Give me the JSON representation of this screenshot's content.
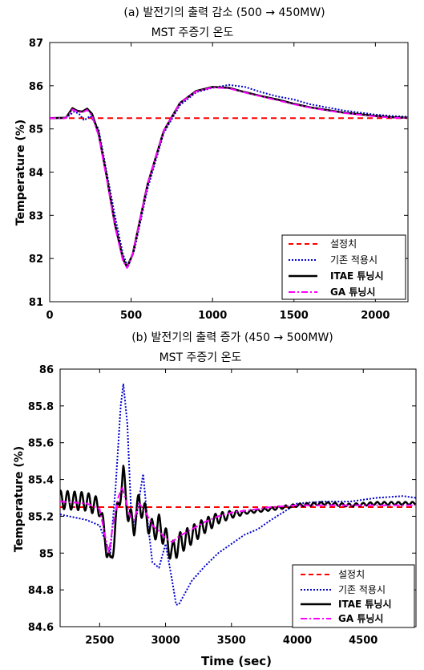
{
  "colors": {
    "setpoint": "#ff0000",
    "baseline": "#0000cc",
    "itae": "#000000",
    "ga": "#ff00ff"
  },
  "chart_data": [
    {
      "type": "line",
      "title": "(a) 발전기의 출력 감소 (500 → 450MW)",
      "subtitle": "MST 주증기 온도",
      "xlabel": "",
      "ylabel": "Temperature (%)",
      "xlim": [
        0,
        2200
      ],
      "ylim": [
        81,
        87
      ],
      "xticks": [
        0,
        500,
        1000,
        1500,
        2000
      ],
      "yticks": [
        81,
        82,
        83,
        84,
        85,
        86,
        87
      ],
      "xtick_labels": [
        "0",
        "500",
        "1000",
        "1500",
        "2000"
      ],
      "ytick_labels": [
        "81",
        "82",
        "83",
        "84",
        "85",
        "86",
        "87"
      ],
      "grid": false,
      "legend_position": "bottom-right",
      "series": [
        {
          "name": "설정치",
          "style": "dashed",
          "x": [
            0,
            2200
          ],
          "y": [
            85.25,
            85.25
          ]
        },
        {
          "name": "기존 적용시",
          "style": "dotted",
          "x": [
            0,
            100,
            150,
            180,
            210,
            250,
            300,
            350,
            400,
            450,
            480,
            520,
            600,
            700,
            800,
            900,
            1000,
            1100,
            1200,
            1300,
            1400,
            1500,
            1600,
            1700,
            1800,
            1900,
            2000,
            2100,
            2200
          ],
          "y": [
            85.25,
            85.25,
            85.4,
            85.35,
            85.2,
            85.3,
            85.0,
            84.0,
            83.0,
            82.1,
            81.8,
            82.2,
            83.6,
            84.9,
            85.55,
            85.85,
            85.95,
            86.02,
            85.97,
            85.85,
            85.75,
            85.68,
            85.57,
            85.5,
            85.43,
            85.38,
            85.33,
            85.3,
            85.28
          ]
        },
        {
          "name": "ITAE 튜닝시",
          "style": "solid",
          "x": [
            0,
            100,
            140,
            170,
            200,
            230,
            260,
            300,
            350,
            400,
            450,
            475,
            510,
            600,
            700,
            800,
            900,
            1000,
            1100,
            1200,
            1300,
            1400,
            1500,
            1600,
            1700,
            1800,
            1900,
            2000,
            2100,
            2200
          ],
          "y": [
            85.25,
            85.26,
            85.48,
            85.42,
            85.4,
            85.47,
            85.35,
            84.9,
            83.9,
            82.8,
            82.0,
            81.8,
            82.1,
            83.7,
            84.95,
            85.6,
            85.88,
            85.97,
            85.95,
            85.85,
            85.76,
            85.68,
            85.58,
            85.5,
            85.44,
            85.38,
            85.34,
            85.3,
            85.27,
            85.26
          ]
        },
        {
          "name": "GA 튜닝시",
          "style": "dashdot",
          "x": [
            0,
            100,
            140,
            170,
            200,
            230,
            260,
            300,
            350,
            400,
            450,
            475,
            510,
            600,
            700,
            800,
            900,
            1000,
            1100,
            1200,
            1300,
            1400,
            1500,
            1600,
            1700,
            1800,
            1900,
            2000,
            2100,
            2200
          ],
          "y": [
            85.25,
            85.25,
            85.45,
            85.4,
            85.38,
            85.44,
            85.3,
            84.85,
            83.85,
            82.75,
            81.95,
            81.78,
            82.1,
            83.7,
            84.95,
            85.6,
            85.87,
            85.96,
            85.94,
            85.84,
            85.75,
            85.66,
            85.57,
            85.49,
            85.43,
            85.37,
            85.33,
            85.29,
            85.26,
            85.25
          ]
        }
      ]
    },
    {
      "type": "line",
      "title": "(b) 발전기의 출력 증가 (450 → 500MW)",
      "subtitle": "MST 주증기 온도",
      "xlabel": "Time (sec)",
      "ylabel": "Temperature (%)",
      "xlim": [
        2200,
        4900
      ],
      "ylim": [
        84.6,
        86
      ],
      "xticks": [
        2500,
        3000,
        3500,
        4000,
        4500
      ],
      "yticks": [
        84.6,
        84.8,
        85,
        85.2,
        85.4,
        85.6,
        85.8,
        86
      ],
      "xtick_labels": [
        "2500",
        "3000",
        "3500",
        "4000",
        "4500"
      ],
      "ytick_labels": [
        "84.6",
        "84.8",
        "85",
        "85.2",
        "85.4",
        "85.6",
        "85.8",
        "86"
      ],
      "grid": false,
      "legend_position": "bottom-right",
      "series": [
        {
          "name": "설정치",
          "style": "dashed",
          "x": [
            2200,
            4900
          ],
          "y": [
            85.25,
            85.25
          ]
        },
        {
          "name": "기존 적용시",
          "style": "dotted",
          "x": [
            2200,
            2400,
            2500,
            2550,
            2580,
            2620,
            2660,
            2680,
            2710,
            2740,
            2770,
            2800,
            2830,
            2860,
            2900,
            2950,
            3000,
            3050,
            3080,
            3100,
            3200,
            3300,
            3400,
            3500,
            3600,
            3700,
            3800,
            4000,
            4200,
            4400,
            4600,
            4800,
            4900
          ],
          "y": [
            85.21,
            85.18,
            85.15,
            85.05,
            85.0,
            85.35,
            85.8,
            85.92,
            85.7,
            85.2,
            85.15,
            85.3,
            85.43,
            85.2,
            84.95,
            84.92,
            85.05,
            84.85,
            84.72,
            84.72,
            84.85,
            84.93,
            85.0,
            85.05,
            85.1,
            85.13,
            85.18,
            85.27,
            85.28,
            85.28,
            85.3,
            85.31,
            85.3
          ]
        },
        {
          "name": "ITAE 튜닝시",
          "style": "solid",
          "oscillating": true,
          "x": [
            2200,
            2400,
            2500,
            2550,
            2580,
            2620,
            2660,
            2680,
            2720,
            2760,
            2800,
            2850,
            2900,
            2950,
            3000,
            3050,
            3100,
            3200,
            3300,
            3400,
            3500,
            3600,
            3700,
            3800,
            3900,
            4000,
            4200,
            4400,
            4600,
            4800,
            4900
          ],
          "y": [
            85.29,
            85.28,
            85.25,
            85.05,
            84.92,
            85.15,
            85.35,
            85.42,
            85.2,
            85.15,
            85.28,
            85.2,
            85.12,
            85.15,
            85.08,
            85.0,
            85.05,
            85.1,
            85.15,
            85.19,
            85.21,
            85.22,
            85.23,
            85.24,
            85.25,
            85.26,
            85.27,
            85.26,
            85.27,
            85.27,
            85.27
          ]
        },
        {
          "name": "GA 튜닝시",
          "style": "dashdot",
          "x": [
            2200,
            2400,
            2500,
            2540,
            2570,
            2600,
            2640,
            2670,
            2700,
            2730,
            2760,
            2800,
            2850,
            2900,
            2950,
            3000,
            3050,
            3100,
            3200,
            3300,
            3400,
            3500,
            3600,
            3700,
            3800,
            4000,
            4200,
            4400,
            4600,
            4800,
            4900
          ],
          "y": [
            85.28,
            85.27,
            85.24,
            85.1,
            85.0,
            85.15,
            85.3,
            85.36,
            85.28,
            85.2,
            85.18,
            85.27,
            85.22,
            85.15,
            85.12,
            85.08,
            85.06,
            85.09,
            85.13,
            85.17,
            85.2,
            85.22,
            85.23,
            85.24,
            85.25,
            85.26,
            85.26,
            85.26,
            85.26,
            85.26,
            85.26
          ]
        }
      ]
    }
  ]
}
